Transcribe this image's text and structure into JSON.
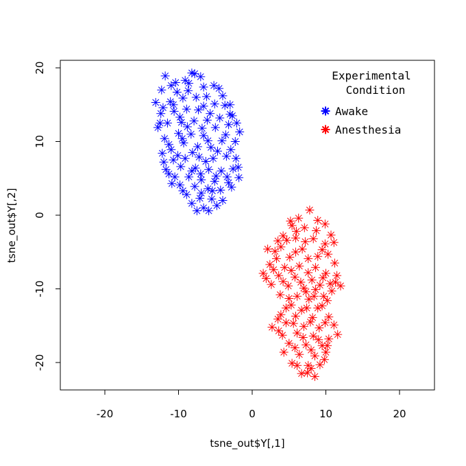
{
  "chart_data": {
    "type": "scatter",
    "xlabel": "tsne_out$Y[,1]",
    "ylabel": "tsne_out$Y[,2]",
    "xlim": [
      -25,
      25
    ],
    "ylim": [
      -24,
      21
    ],
    "xticks": [
      -20,
      -10,
      0,
      10,
      20
    ],
    "yticks": [
      -20,
      -10,
      0,
      10,
      20
    ],
    "grid": false,
    "legend": {
      "title_line1": "Experimental",
      "title_line2": "Condition",
      "placement": "top-right",
      "entries": [
        {
          "label": "Awake",
          "color": "#0000ff"
        },
        {
          "label": "Anesthesia",
          "color": "#ff0000"
        }
      ]
    },
    "marker": "asterisk",
    "series": [
      {
        "name": "Awake",
        "color": "#0000ff",
        "points": [
          [
            -11.8,
            18.9
          ],
          [
            -11.0,
            17.6
          ],
          [
            -12.3,
            17.0
          ],
          [
            -10.2,
            16.7
          ],
          [
            -9.1,
            18.3
          ],
          [
            -8.2,
            19.3
          ],
          [
            -7.0,
            18.8
          ],
          [
            -6.6,
            17.4
          ],
          [
            -7.6,
            16.0
          ],
          [
            -9.4,
            15.9
          ],
          [
            -11.1,
            15.4
          ],
          [
            -13.1,
            15.3
          ],
          [
            -12.4,
            13.8
          ],
          [
            -10.6,
            14.1
          ],
          [
            -8.9,
            14.4
          ],
          [
            -6.6,
            14.8
          ],
          [
            -5.2,
            17.6
          ],
          [
            -4.5,
            17.2
          ],
          [
            -5.1,
            15.1
          ],
          [
            -3.7,
            14.9
          ],
          [
            -3.0,
            15.0
          ],
          [
            -2.7,
            13.5
          ],
          [
            -4.4,
            13.2
          ],
          [
            -6.1,
            12.9
          ],
          [
            -7.9,
            12.8
          ],
          [
            -9.6,
            12.6
          ],
          [
            -11.5,
            12.5
          ],
          [
            -12.8,
            11.9
          ],
          [
            -11.9,
            10.4
          ],
          [
            -10.0,
            11.1
          ],
          [
            -8.3,
            11.0
          ],
          [
            -6.6,
            10.8
          ],
          [
            -5.0,
            11.9
          ],
          [
            -3.2,
            12.3
          ],
          [
            -1.7,
            11.3
          ],
          [
            -2.3,
            10.0
          ],
          [
            -4.1,
            10.1
          ],
          [
            -5.6,
            9.2
          ],
          [
            -7.4,
            9.3
          ],
          [
            -9.3,
            9.8
          ],
          [
            -11.0,
            8.9
          ],
          [
            -12.2,
            8.4
          ],
          [
            -10.7,
            7.5
          ],
          [
            -9.1,
            7.7
          ],
          [
            -7.2,
            7.9
          ],
          [
            -5.3,
            7.7
          ],
          [
            -3.5,
            8.0
          ],
          [
            -2.2,
            7.7
          ],
          [
            -2.6,
            6.3
          ],
          [
            -4.2,
            6.0
          ],
          [
            -5.9,
            6.2
          ],
          [
            -7.7,
            6.4
          ],
          [
            -9.7,
            6.6
          ],
          [
            -11.7,
            6.2
          ],
          [
            -12.0,
            7.2
          ],
          [
            -10.5,
            5.2
          ],
          [
            -8.6,
            5.2
          ],
          [
            -6.9,
            4.8
          ],
          [
            -5.1,
            4.6
          ],
          [
            -3.4,
            5.2
          ],
          [
            -1.8,
            5.1
          ],
          [
            -2.8,
            3.8
          ],
          [
            -4.3,
            3.4
          ],
          [
            -6.0,
            3.6
          ],
          [
            -7.8,
            3.9
          ],
          [
            -9.8,
            4.1
          ],
          [
            -10.9,
            4.3
          ],
          [
            -8.9,
            2.8
          ],
          [
            -7.1,
            2.3
          ],
          [
            -5.5,
            2.2
          ],
          [
            -4.0,
            2.0
          ],
          [
            -6.6,
            1.0
          ],
          [
            -7.5,
            0.6
          ],
          [
            -5.9,
            0.6
          ],
          [
            -8.2,
            1.6
          ],
          [
            -8.6,
            17.9
          ],
          [
            -10.4,
            18.0
          ],
          [
            -6.2,
            16.1
          ],
          [
            -9.8,
            13.3
          ],
          [
            -4.0,
            16.2
          ],
          [
            -7.3,
            14.3
          ],
          [
            -12.1,
            14.6
          ],
          [
            -8.7,
            16.9
          ],
          [
            -2.1,
            12.5
          ],
          [
            -3.6,
            10.9
          ],
          [
            -6.8,
            11.8
          ],
          [
            -9.5,
            10.4
          ],
          [
            -11.3,
            9.6
          ],
          [
            -4.7,
            8.7
          ],
          [
            -8.1,
            8.5
          ],
          [
            -10.1,
            8.1
          ],
          [
            -2.9,
            8.9
          ],
          [
            -6.3,
            7.3
          ],
          [
            -1.9,
            6.5
          ],
          [
            -4.9,
            5.3
          ],
          [
            -8.2,
            6.0
          ],
          [
            -11.3,
            5.6
          ],
          [
            -7.0,
            5.6
          ],
          [
            -3.2,
            4.4
          ],
          [
            -9.4,
            3.3
          ],
          [
            -5.4,
            3.3
          ],
          [
            -6.9,
            3.0
          ],
          [
            -4.8,
            1.3
          ],
          [
            -7.8,
            19.2
          ],
          [
            -10.7,
            15.0
          ],
          [
            -5.7,
            13.8
          ],
          [
            -8.8,
            12.0
          ],
          [
            -3.0,
            13.7
          ],
          [
            -12.5,
            12.5
          ],
          [
            -6.0,
            10.1
          ]
        ]
      },
      {
        "name": "Anesthesia",
        "color": "#ff0000",
        "points": [
          [
            7.8,
            0.7
          ],
          [
            6.3,
            -0.4
          ],
          [
            8.9,
            -0.7
          ],
          [
            5.4,
            -1.4
          ],
          [
            7.1,
            -1.7
          ],
          [
            9.9,
            -1.2
          ],
          [
            10.7,
            -2.7
          ],
          [
            4.2,
            -2.8
          ],
          [
            5.9,
            -3.1
          ],
          [
            8.3,
            -3.2
          ],
          [
            11.1,
            -3.7
          ],
          [
            2.1,
            -4.6
          ],
          [
            3.9,
            -4.3
          ],
          [
            6.8,
            -4.6
          ],
          [
            9.5,
            -4.7
          ],
          [
            10.3,
            -5.3
          ],
          [
            3.3,
            -5.9
          ],
          [
            5.1,
            -5.7
          ],
          [
            7.6,
            -5.9
          ],
          [
            11.2,
            -6.5
          ],
          [
            2.4,
            -6.7
          ],
          [
            4.4,
            -7.1
          ],
          [
            6.4,
            -6.9
          ],
          [
            8.6,
            -7.1
          ],
          [
            10.0,
            -7.9
          ],
          [
            1.5,
            -7.9
          ],
          [
            3.6,
            -8.2
          ],
          [
            5.8,
            -8.4
          ],
          [
            8.1,
            -8.8
          ],
          [
            2.6,
            -9.4
          ],
          [
            4.9,
            -9.6
          ],
          [
            7.0,
            -9.9
          ],
          [
            9.2,
            -9.5
          ],
          [
            11.3,
            -9.1
          ],
          [
            12.0,
            -9.6
          ],
          [
            10.8,
            -10.3
          ],
          [
            3.8,
            -10.8
          ],
          [
            6.1,
            -11.0
          ],
          [
            8.4,
            -11.0
          ],
          [
            10.2,
            -11.6
          ],
          [
            5.3,
            -12.2
          ],
          [
            7.4,
            -12.6
          ],
          [
            9.5,
            -12.3
          ],
          [
            3.9,
            -13.5
          ],
          [
            5.9,
            -13.7
          ],
          [
            8.2,
            -13.9
          ],
          [
            10.4,
            -13.8
          ],
          [
            4.6,
            -14.6
          ],
          [
            7.0,
            -15.1
          ],
          [
            9.1,
            -15.3
          ],
          [
            11.1,
            -14.9
          ],
          [
            2.7,
            -15.2
          ],
          [
            3.6,
            -15.7
          ],
          [
            6.1,
            -16.0
          ],
          [
            8.3,
            -16.4
          ],
          [
            10.4,
            -16.8
          ],
          [
            11.6,
            -16.2
          ],
          [
            5.0,
            -17.4
          ],
          [
            7.3,
            -17.6
          ],
          [
            9.5,
            -17.7
          ],
          [
            4.3,
            -18.6
          ],
          [
            6.4,
            -18.9
          ],
          [
            8.5,
            -19.1
          ],
          [
            10.0,
            -18.6
          ],
          [
            5.4,
            -20.1
          ],
          [
            7.6,
            -20.4
          ],
          [
            9.2,
            -20.3
          ],
          [
            6.7,
            -21.5
          ],
          [
            8.5,
            -21.9
          ],
          [
            7.5,
            -21.4
          ],
          [
            5.2,
            -0.8
          ],
          [
            6.0,
            -2.2
          ],
          [
            8.7,
            -2.1
          ],
          [
            4.7,
            -3.4
          ],
          [
            7.2,
            -3.6
          ],
          [
            9.9,
            -3.9
          ],
          [
            3.1,
            -4.9
          ],
          [
            5.9,
            -5.0
          ],
          [
            8.9,
            -5.6
          ],
          [
            2.9,
            -7.4
          ],
          [
            5.3,
            -7.5
          ],
          [
            7.6,
            -7.8
          ],
          [
            9.6,
            -8.5
          ],
          [
            1.9,
            -8.6
          ],
          [
            4.2,
            -9.0
          ],
          [
            6.6,
            -9.1
          ],
          [
            8.6,
            -10.1
          ],
          [
            10.6,
            -9.3
          ],
          [
            5.0,
            -11.3
          ],
          [
            7.7,
            -11.4
          ],
          [
            9.7,
            -11.0
          ],
          [
            4.6,
            -12.6
          ],
          [
            6.7,
            -12.9
          ],
          [
            8.9,
            -12.6
          ],
          [
            3.5,
            -14.1
          ],
          [
            5.6,
            -14.7
          ],
          [
            7.9,
            -14.5
          ],
          [
            9.9,
            -14.6
          ],
          [
            4.1,
            -16.3
          ],
          [
            6.9,
            -16.6
          ],
          [
            9.0,
            -16.9
          ],
          [
            5.8,
            -18.0
          ],
          [
            8.0,
            -18.3
          ],
          [
            9.8,
            -19.6
          ],
          [
            6.1,
            -20.4
          ],
          [
            8.0,
            -20.8
          ],
          [
            10.2,
            -17.7
          ],
          [
            3.5,
            -3.5
          ],
          [
            7.3,
            -10.4
          ],
          [
            11.5,
            -8.2
          ]
        ]
      }
    ]
  }
}
